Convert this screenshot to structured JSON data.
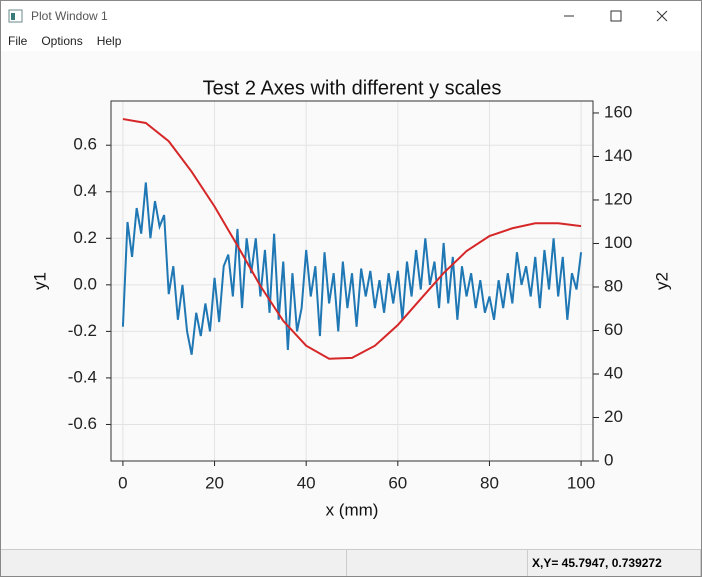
{
  "window": {
    "title": "Plot Window 1"
  },
  "menu": [
    "File",
    "Options",
    "Help"
  ],
  "chart_data": {
    "type": "line",
    "title": "Test 2 Axes with different y scales",
    "x_label": "x (mm)",
    "y_label": "y1",
    "y2_label": "y2",
    "xlim": [
      -2.6,
      102.6
    ],
    "ylim": [
      -0.757,
      0.79
    ],
    "y2lim": [
      0,
      165.5
    ],
    "xticks": [
      0,
      20,
      40,
      60,
      80,
      100
    ],
    "yticks": [
      -0.6,
      -0.4,
      -0.2,
      {
        "value": 0,
        "label": "0.0"
      },
      0.2,
      0.4,
      0.6
    ],
    "y2ticks": [
      0,
      20,
      40,
      60,
      80,
      100,
      120,
      140,
      160
    ],
    "grid": true,
    "series": [
      {
        "color": "#1f77b4",
        "x": [
          0,
          1,
          2,
          3,
          4,
          5,
          6,
          7,
          8,
          9,
          10,
          11,
          12,
          13,
          14,
          15,
          16,
          17,
          18,
          19,
          20,
          21,
          22,
          23,
          24,
          25,
          26,
          27,
          28,
          29,
          30,
          31,
          32,
          33,
          34,
          35,
          36,
          37,
          38,
          39,
          40,
          41,
          42,
          43,
          44,
          45,
          46,
          47,
          48,
          49,
          50,
          51,
          52,
          53,
          54,
          55,
          56,
          57,
          58,
          59,
          60,
          61,
          62,
          63,
          64,
          65,
          66,
          67,
          68,
          69,
          70,
          71,
          72,
          73,
          74,
          75,
          76,
          77,
          78,
          79,
          80,
          81,
          82,
          83,
          84,
          85,
          86,
          87,
          88,
          89,
          90,
          91,
          92,
          93,
          94,
          95,
          96,
          97,
          98,
          99,
          100
        ],
        "values": [
          -0.18,
          0.27,
          0.12,
          0.33,
          0.22,
          0.44,
          0.2,
          0.36,
          0.25,
          0.3,
          -0.04,
          0.08,
          -0.15,
          0.0,
          -0.2,
          -0.3,
          -0.12,
          -0.22,
          -0.08,
          -0.2,
          0.03,
          -0.16,
          0.08,
          0.13,
          -0.05,
          0.24,
          -0.1,
          0.2,
          0.05,
          0.2,
          -0.05,
          0.15,
          -0.12,
          0.22,
          -0.15,
          0.1,
          -0.28,
          0.05,
          -0.2,
          -0.1,
          0.15,
          -0.05,
          0.08,
          -0.22,
          0.14,
          -0.08,
          0.05,
          -0.2,
          0.1,
          -0.1,
          0.05,
          -0.18,
          0.07,
          -0.05,
          0.06,
          -0.1,
          0.02,
          -0.12,
          0.05,
          -0.08,
          0.06,
          -0.15,
          0.1,
          -0.05,
          0.15,
          -0.02,
          0.2,
          0.0,
          0.1,
          -0.1,
          0.18,
          -0.08,
          0.12,
          -0.15,
          0.08,
          -0.05,
          0.05,
          -0.1,
          0.02,
          -0.12,
          -0.05,
          -0.15,
          0.02,
          -0.1,
          0.05,
          -0.08,
          0.14,
          0.0,
          0.08,
          -0.05,
          0.12,
          -0.1,
          0.15,
          -0.02,
          0.2,
          -0.05,
          0.12,
          -0.15,
          0.05,
          -0.02,
          0.14
        ]
      },
      {
        "color": "#d62728",
        "axis": "y2",
        "x": [
          0,
          5,
          10,
          15,
          20,
          25,
          30,
          35,
          40,
          45,
          50,
          55,
          60,
          65,
          70,
          75,
          80,
          85,
          90,
          95,
          100
        ],
        "values": [
          157.2,
          155.4,
          147,
          133,
          117,
          99,
          80.5,
          64.4,
          53,
          47,
          47.4,
          53,
          62.5,
          74.5,
          86.4,
          96.5,
          103.4,
          107,
          109.3,
          109.3,
          108
        ]
      }
    ]
  },
  "status_bar": {
    "text": "X,Y= 45.7947, 0.739272"
  }
}
